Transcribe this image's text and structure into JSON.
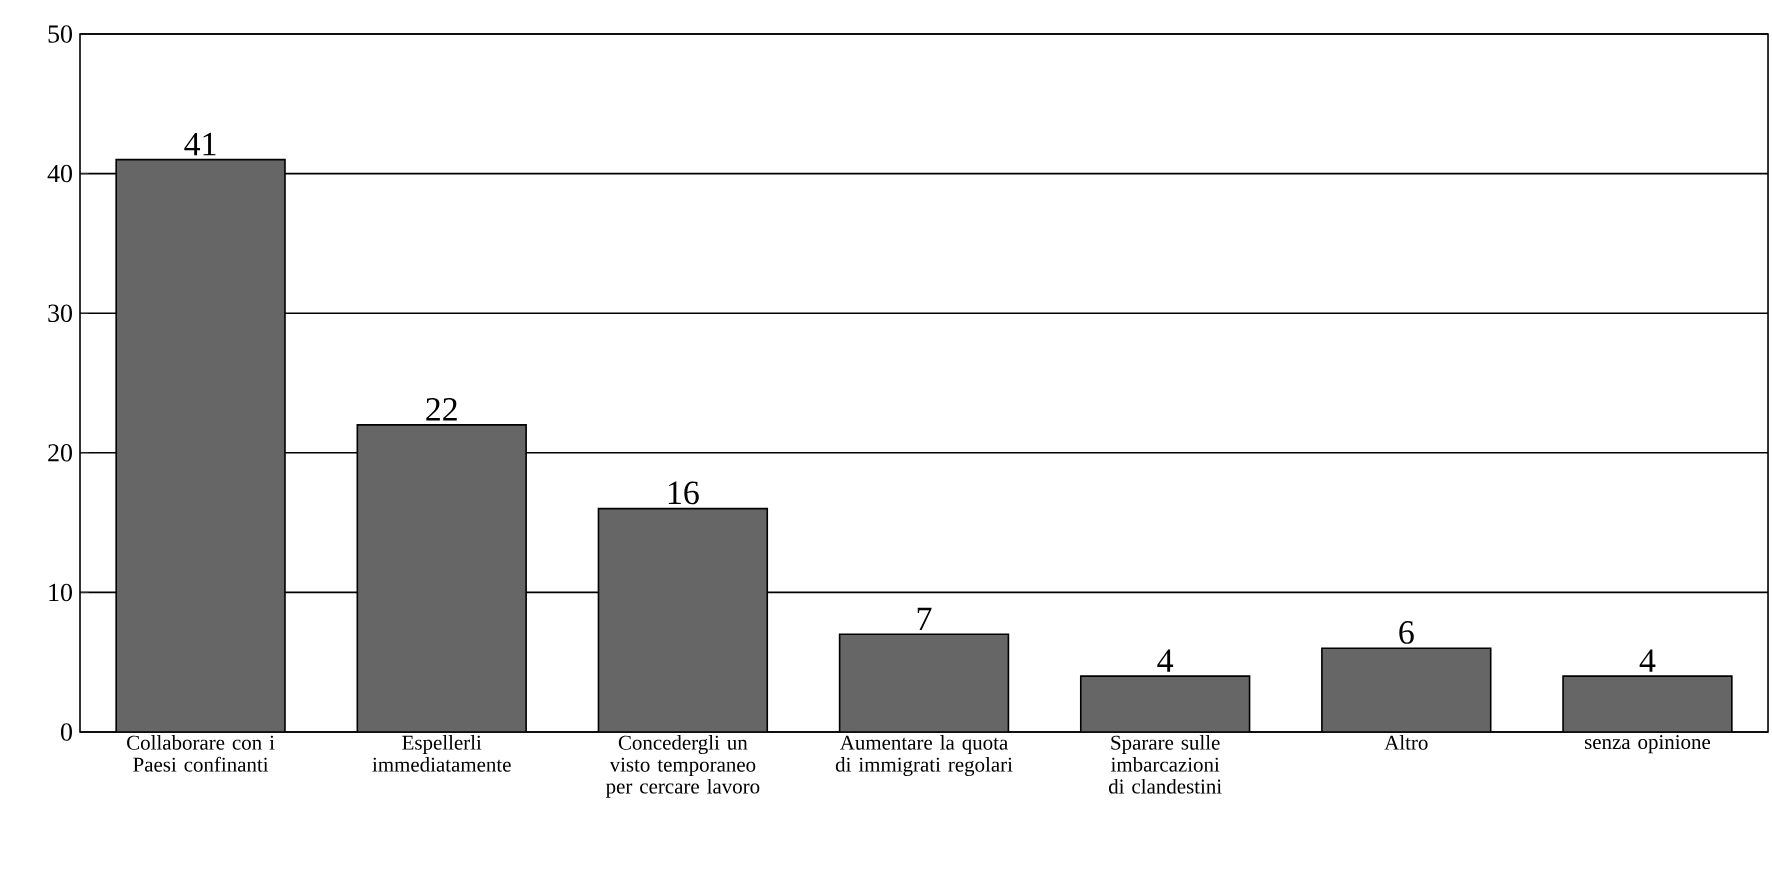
{
  "chart_data": {
    "type": "bar",
    "categories": [
      "Collaborare con i Paesi confinanti",
      "Espellerli immediatamente",
      "Concedergli un visto temporaneo per cercare lavoro",
      "Aumentare la quota di immigrati regolari",
      "Sparare sulle imbarcazioni di clandestini",
      "Altro",
      "senza opinione"
    ],
    "values": [
      41,
      22,
      16,
      7,
      4,
      6,
      4
    ],
    "color": "#666666",
    "ylim": [
      0,
      50
    ],
    "yticks": [
      0,
      10,
      20,
      30,
      40,
      50
    ],
    "grid": "y",
    "data_labels": true
  }
}
